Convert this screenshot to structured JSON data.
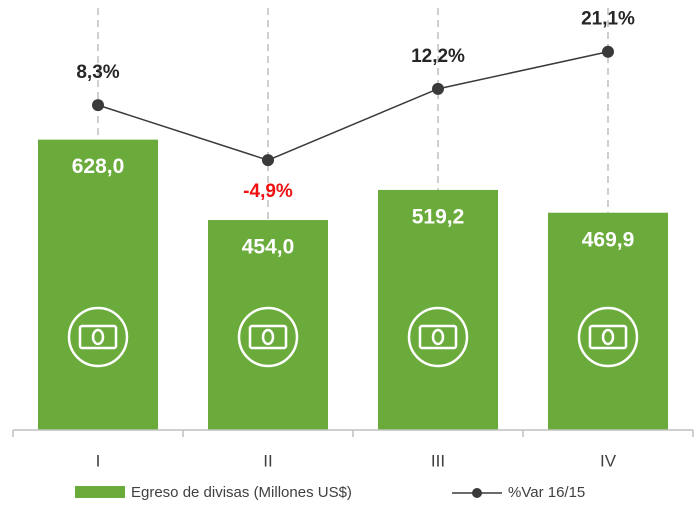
{
  "chart_data": {
    "type": "bar_line",
    "categories": [
      "I",
      "II",
      "III",
      "IV"
    ],
    "series": [
      {
        "name": "Egreso de divisas (Millones US$)",
        "type": "bar",
        "color": "#6aab3c",
        "values": [
          628.0,
          454.0,
          519.2,
          469.9
        ],
        "value_labels": [
          "628,0",
          "454,0",
          "519,2",
          "469,9"
        ]
      },
      {
        "name": "%Var 16/15",
        "type": "line",
        "axis": "y2",
        "color": "#3a3a3a",
        "values": [
          8.3,
          -4.9,
          12.2,
          21.1
        ],
        "value_labels": [
          "8,3%",
          "-4,9%",
          "12,2%",
          "21,1%"
        ],
        "negative_label_color": "#ee1111"
      }
    ],
    "ylim": [
      0,
      930
    ],
    "y2lim": [
      -69.6,
      33.5
    ]
  }
}
